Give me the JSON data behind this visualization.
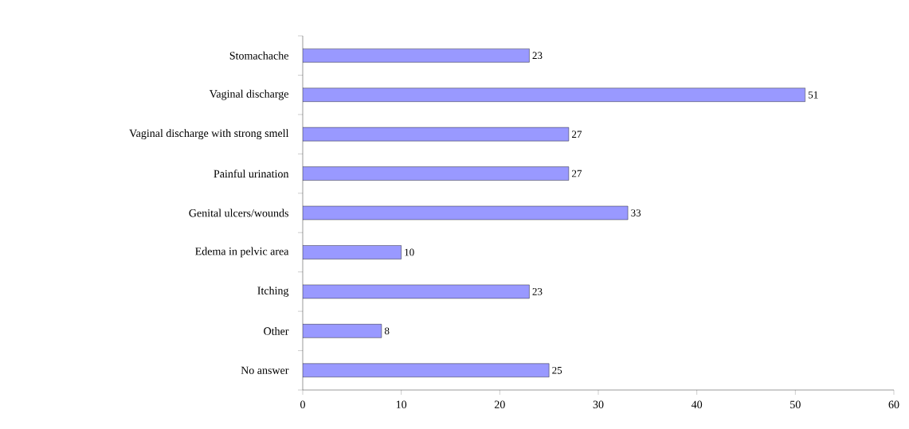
{
  "chart_data": {
    "type": "bar",
    "orientation": "horizontal",
    "categories": [
      "Stomachache",
      "Vaginal discharge",
      "Vaginal discharge with strong smell",
      "Painful urination",
      "Genital ulcers/wounds",
      "Edema in pelvic area",
      "Itching",
      "Other",
      "No answer"
    ],
    "values": [
      23,
      51,
      27,
      27,
      33,
      10,
      23,
      8,
      25
    ],
    "color": "#9999ff",
    "xlim": [
      0,
      60
    ],
    "xticks": [
      0,
      10,
      20,
      30,
      40,
      50,
      60
    ],
    "data_labels": true
  }
}
